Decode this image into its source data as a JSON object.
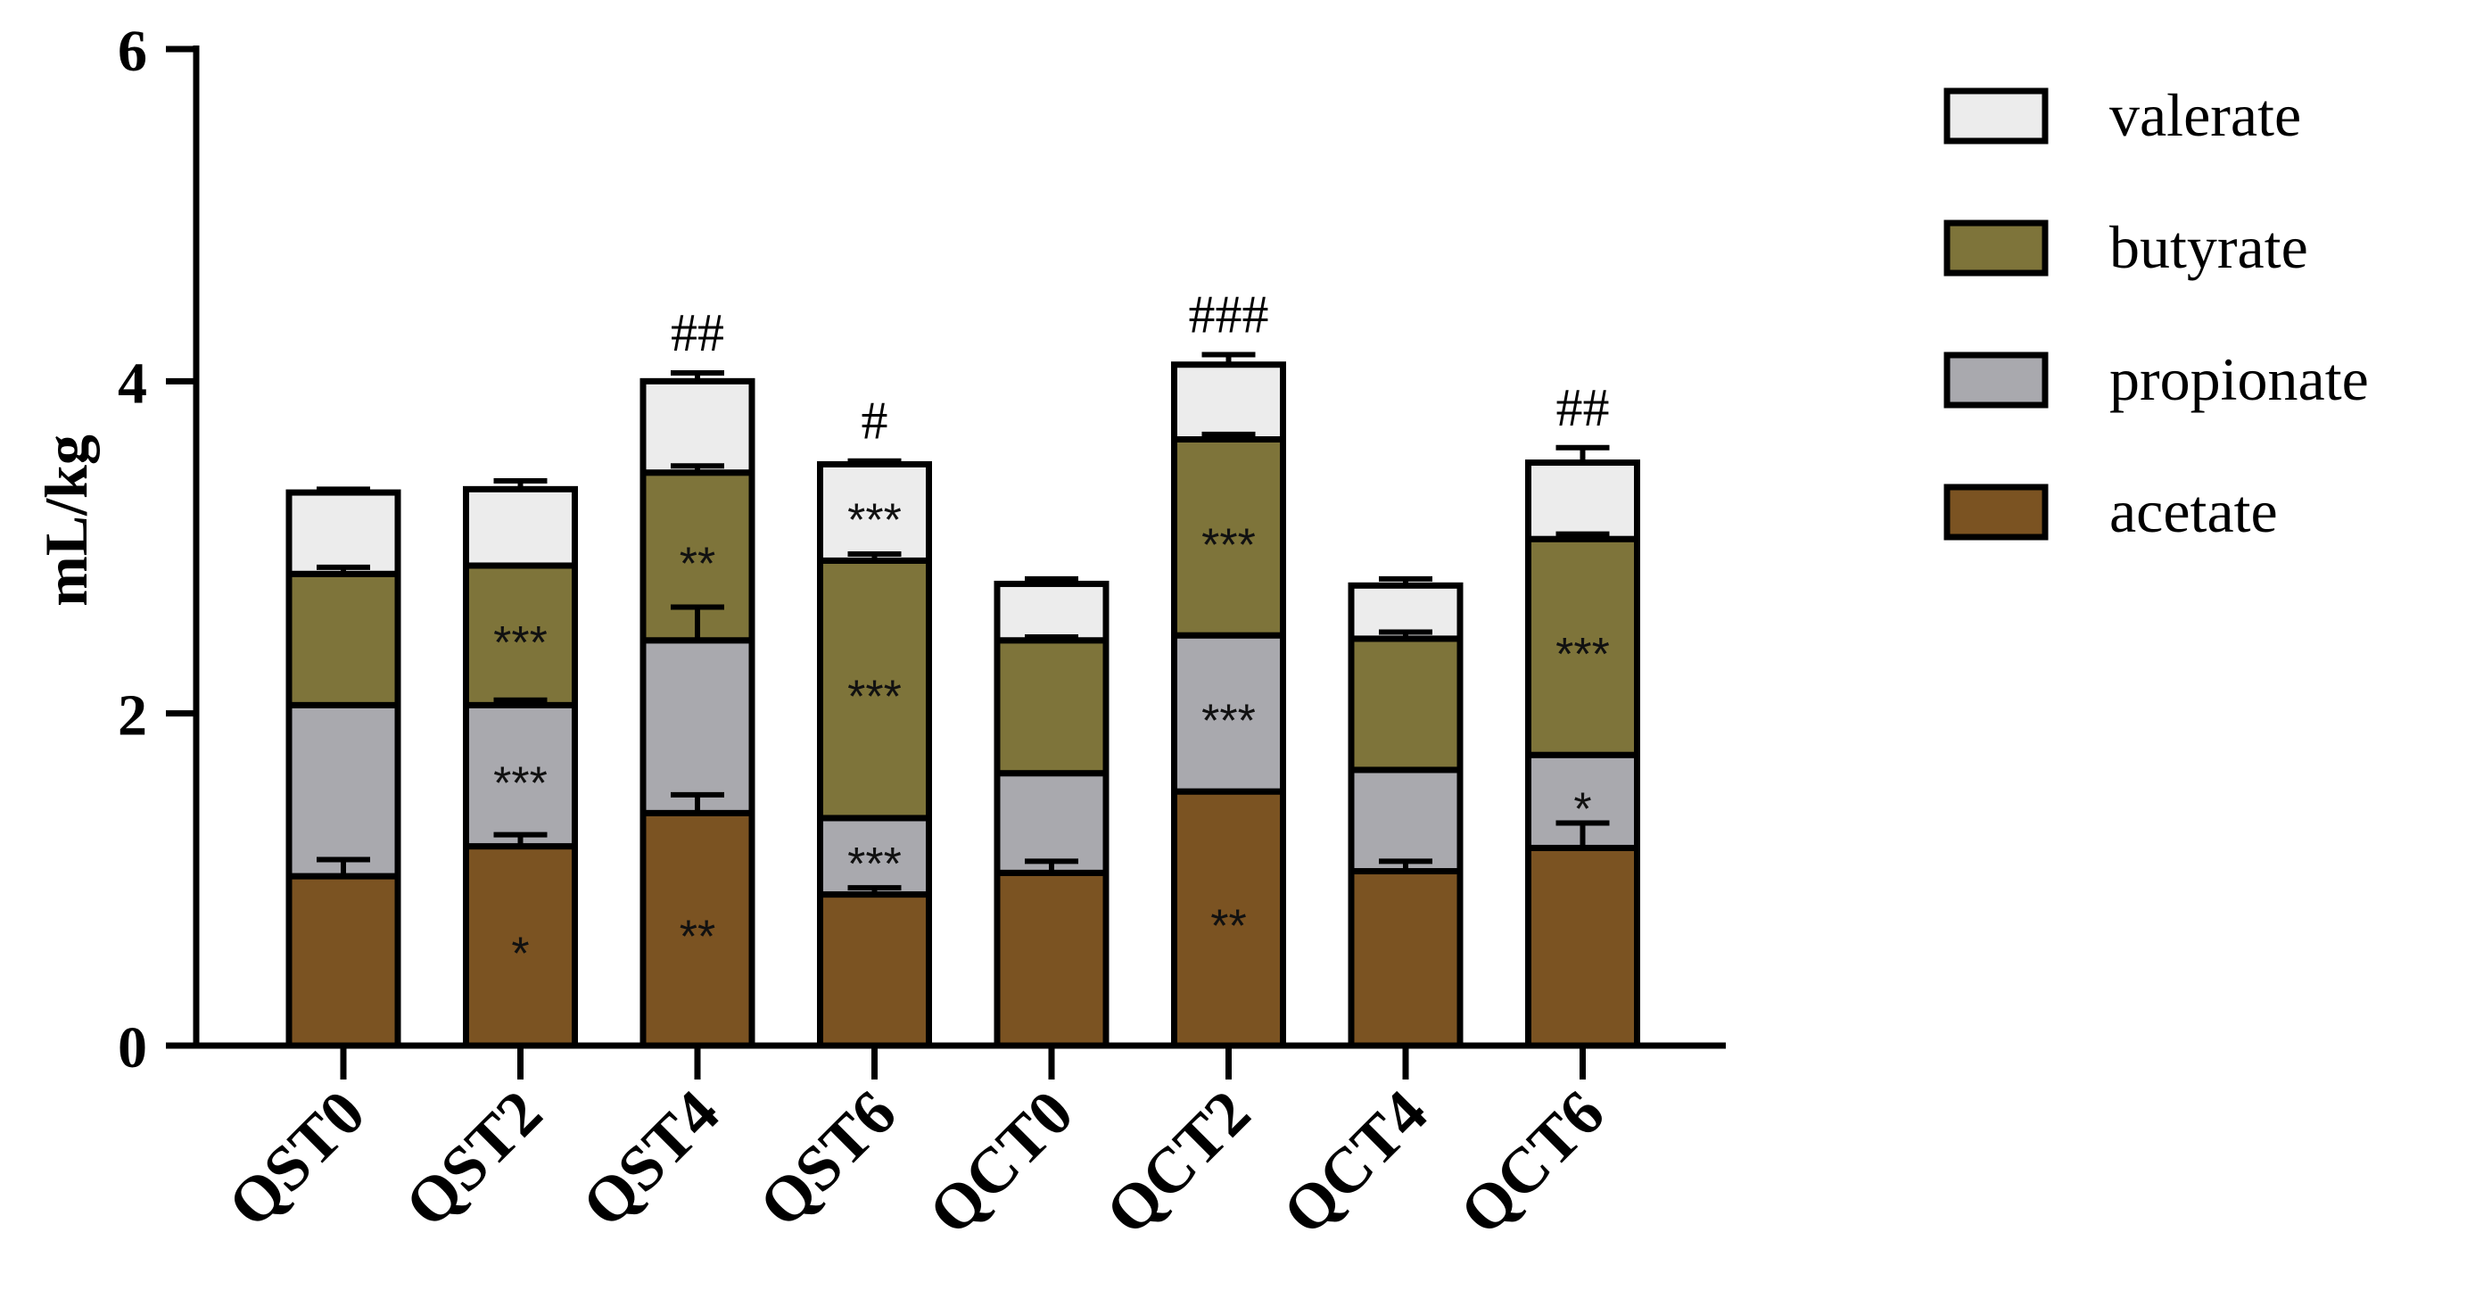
{
  "chart_data": {
    "type": "bar",
    "stacked": true,
    "title": "",
    "xlabel": "",
    "ylabel": "mL/kg",
    "ylim": [
      0,
      6
    ],
    "yticks": [
      0,
      2,
      4,
      6
    ],
    "legend_position": "right",
    "categories": [
      "QST0",
      "QST2",
      "QST4",
      "QST6",
      "QCT0",
      "QCT2",
      "QCT4",
      "QCT6"
    ],
    "series": [
      {
        "name": "acetate",
        "color": "#7B5322",
        "values": [
          1.02,
          1.2,
          1.4,
          0.91,
          1.04,
          1.53,
          1.05,
          1.19
        ],
        "errors": [
          0.1,
          0.07,
          0.11,
          0.04,
          0.07,
          0.0,
          0.06,
          0.15
        ],
        "annotations": [
          "",
          "*",
          "**",
          "",
          "",
          "**",
          "",
          ""
        ]
      },
      {
        "name": "propionate",
        "color": "#A9A9AE",
        "values": [
          1.03,
          0.85,
          1.04,
          0.46,
          0.6,
          0.94,
          0.61,
          0.56
        ],
        "errors": [
          0.0,
          0.03,
          0.2,
          0.0,
          0.0,
          0.0,
          0.0,
          0.0
        ],
        "annotations": [
          "",
          "***",
          "",
          "***",
          "",
          "***",
          "",
          "*"
        ]
      },
      {
        "name": "butyrate",
        "color": "#7E743A",
        "values": [
          0.79,
          0.84,
          1.01,
          1.55,
          0.8,
          1.18,
          0.79,
          1.3
        ],
        "errors": [
          0.04,
          0.0,
          0.04,
          0.04,
          0.02,
          0.03,
          0.04,
          0.03
        ],
        "annotations": [
          "",
          "***",
          "**",
          "***",
          "",
          "***",
          "",
          "***"
        ]
      },
      {
        "name": "valerate",
        "color": "#ECECEC",
        "values": [
          0.49,
          0.46,
          0.55,
          0.58,
          0.34,
          0.45,
          0.32,
          0.46
        ],
        "errors": [
          0.02,
          0.05,
          0.05,
          0.02,
          0.03,
          0.06,
          0.04,
          0.09
        ],
        "annotations": [
          "",
          "",
          "",
          "***",
          "",
          "",
          "",
          ""
        ]
      }
    ],
    "group_annotations": [
      "",
      "",
      "##",
      "#",
      "",
      "###",
      "",
      "##"
    ]
  }
}
